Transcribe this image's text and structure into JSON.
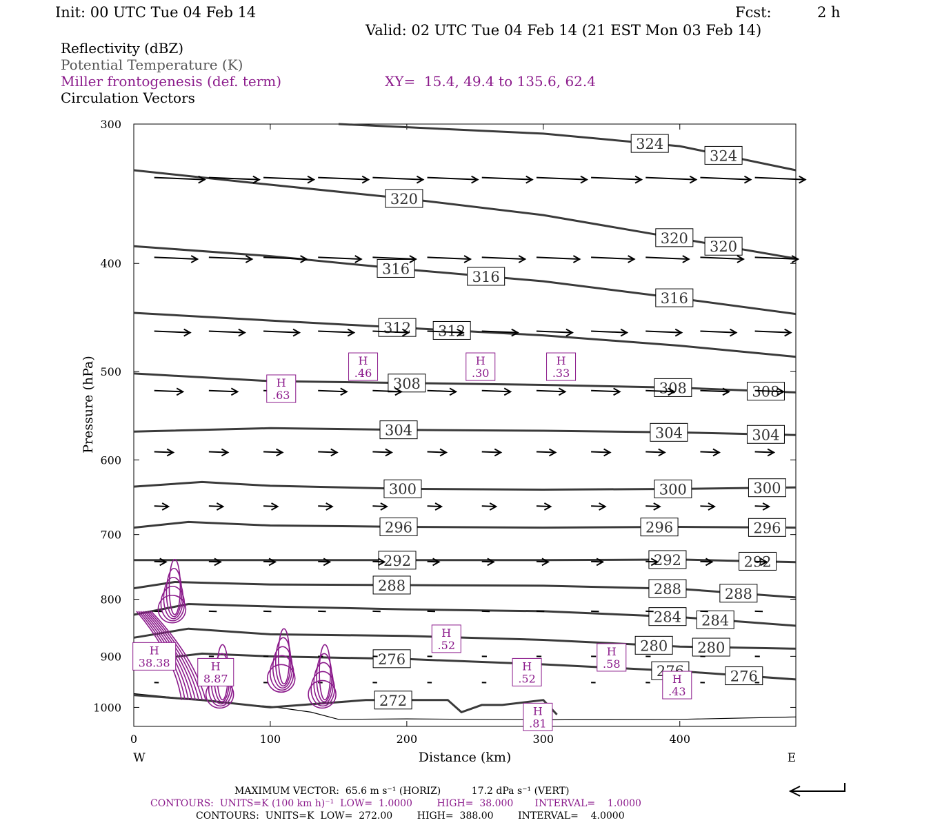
{
  "header": {
    "init": "Init: 00 UTC Tue 04 Feb 14",
    "fcst_label": "Fcst:",
    "fcst_value": "2 h",
    "valid": "Valid: 02 UTC Tue 04 Feb 14 (21 EST Mon 03 Feb 14)"
  },
  "legend": {
    "reflectivity": "Reflectivity (dBZ)",
    "theta": "Potential Temperature (K)",
    "frontogenesis": "Miller frontogenesis (def. term)",
    "xy": "XY=  15.4, 49.4 to 135.6, 62.4",
    "vectors": "Circulation Vectors"
  },
  "footer": {
    "max_vector": "MAXIMUM VECTOR:  65.6 m s⁻¹ (HORIZ)          17.2 dPa s⁻¹ (VERT)",
    "contours_purple": "CONTOURS:  UNITS=K (100 km h)⁻¹  LOW=  1.0000        HIGH=  38.000       INTERVAL=    1.0000",
    "contours_black": "CONTOURS:  UNITS=K  LOW=  272.00        HIGH=  388.00        INTERVAL=    4.0000"
  },
  "colors": {
    "theta": "#3a3a3a",
    "frontogenesis": "#8b1a8b",
    "vectors": "#000000",
    "terrain": "#000000"
  },
  "chart_data": {
    "type": "contour cross-section",
    "xlabel": "Distance (km)",
    "ylabel": "Pressure (hPa)",
    "xlim": [
      0,
      485
    ],
    "ylim": [
      1040,
      300
    ],
    "y_scale": "log",
    "x_ticks": [
      0,
      100,
      200,
      300,
      400
    ],
    "y_ticks": [
      300,
      400,
      500,
      600,
      700,
      800,
      900,
      1000
    ],
    "x_end_labels": [
      "W",
      "E"
    ],
    "theta_contours": [
      {
        "label": "324",
        "points": [
          [
            150,
            300
          ],
          [
            300,
            306
          ],
          [
            400,
            314
          ],
          [
            485,
            330
          ]
        ],
        "label_x": [
          378,
          432
        ]
      },
      {
        "label": "320",
        "points": [
          [
            0,
            330
          ],
          [
            100,
            340
          ],
          [
            200,
            350
          ],
          [
            300,
            362
          ],
          [
            400,
            380
          ],
          [
            485,
            396
          ]
        ],
        "label_x": [
          198,
          396,
          432
        ]
      },
      {
        "label": "316",
        "points": [
          [
            0,
            386
          ],
          [
            100,
            394
          ],
          [
            200,
            405
          ],
          [
            300,
            415
          ],
          [
            400,
            430
          ],
          [
            485,
            444
          ]
        ],
        "label_x": [
          192,
          258,
          396
        ]
      },
      {
        "label": "312",
        "points": [
          [
            0,
            443
          ],
          [
            100,
            450
          ],
          [
            200,
            457
          ],
          [
            300,
            464
          ],
          [
            400,
            474
          ],
          [
            485,
            485
          ]
        ],
        "label_x": [
          193,
          233
        ]
      },
      {
        "label": "308",
        "points": [
          [
            0,
            502
          ],
          [
            100,
            510
          ],
          [
            200,
            512
          ],
          [
            300,
            514
          ],
          [
            400,
            517
          ],
          [
            485,
            522
          ]
        ],
        "label_x": [
          200,
          395,
          463
        ]
      },
      {
        "label": "304",
        "points": [
          [
            0,
            566
          ],
          [
            100,
            562
          ],
          [
            200,
            564
          ],
          [
            300,
            565
          ],
          [
            400,
            567
          ],
          [
            485,
            570
          ]
        ],
        "label_x": [
          194,
          392,
          463
        ]
      },
      {
        "label": "300",
        "points": [
          [
            0,
            634
          ],
          [
            50,
            628
          ],
          [
            100,
            633
          ],
          [
            200,
            637
          ],
          [
            300,
            638
          ],
          [
            400,
            637
          ],
          [
            485,
            635
          ]
        ],
        "label_x": [
          197,
          395,
          464
        ]
      },
      {
        "label": "296",
        "points": [
          [
            0,
            690
          ],
          [
            40,
            682
          ],
          [
            100,
            687
          ],
          [
            200,
            689
          ],
          [
            300,
            690
          ],
          [
            400,
            689
          ],
          [
            485,
            690
          ]
        ],
        "label_x": [
          194,
          385,
          464
        ]
      },
      {
        "label": "292",
        "points": [
          [
            0,
            738
          ],
          [
            100,
            738
          ],
          [
            200,
            738
          ],
          [
            300,
            738
          ],
          [
            400,
            737
          ],
          [
            485,
            741
          ]
        ],
        "label_x": [
          193,
          391,
          457
        ]
      },
      {
        "label": "288",
        "points": [
          [
            0,
            782
          ],
          [
            30,
            772
          ],
          [
            100,
            776
          ],
          [
            200,
            777
          ],
          [
            300,
            778
          ],
          [
            400,
            783
          ],
          [
            485,
            797
          ]
        ],
        "label_x": [
          189,
          391,
          443
        ]
      },
      {
        "label": "284",
        "points": [
          [
            0,
            826
          ],
          [
            40,
            808
          ],
          [
            100,
            812
          ],
          [
            200,
            817
          ],
          [
            300,
            820
          ],
          [
            400,
            830
          ],
          [
            485,
            845
          ]
        ],
        "label_x": [
          391,
          426
        ]
      },
      {
        "label": "280",
        "points": [
          [
            0,
            866
          ],
          [
            40,
            850
          ],
          [
            100,
            860
          ],
          [
            200,
            863
          ],
          [
            300,
            870
          ],
          [
            400,
            882
          ],
          [
            485,
            886
          ]
        ],
        "label_x": [
          381,
          423
        ]
      },
      {
        "label": "276",
        "points": [
          [
            0,
            910
          ],
          [
            50,
            895
          ],
          [
            100,
            900
          ],
          [
            200,
            905
          ],
          [
            300,
            915
          ],
          [
            400,
            928
          ],
          [
            485,
            944
          ]
        ],
        "label_x": [
          189,
          393,
          447
        ]
      },
      {
        "label": "272",
        "points": [
          [
            0,
            975
          ],
          [
            50,
            985
          ],
          [
            100,
            1000
          ],
          [
            170,
            985
          ],
          [
            230,
            985
          ],
          [
            240,
            1010
          ],
          [
            255,
            995
          ],
          [
            270,
            995
          ],
          [
            300,
            985
          ],
          [
            310,
            1015
          ]
        ],
        "label_x": [
          190
        ]
      }
    ],
    "frontogenesis_maxima": [
      {
        "label": "H",
        "value": ".63",
        "x": 108,
        "p": 518
      },
      {
        "label": "H",
        "value": ".46",
        "x": 168,
        "p": 495
      },
      {
        "label": "H",
        "value": ".30",
        "x": 254,
        "p": 495
      },
      {
        "label": "H",
        "value": ".33",
        "x": 313,
        "p": 495
      },
      {
        "label": "H",
        "value": ".52",
        "x": 229,
        "p": 868
      },
      {
        "label": "H",
        "value": ".52",
        "x": 288,
        "p": 930
      },
      {
        "label": "H",
        "value": ".58",
        "x": 350,
        "p": 902
      },
      {
        "label": "H",
        "value": ".43",
        "x": 398,
        "p": 955
      },
      {
        "label": "H",
        "value": ".81",
        "x": 296,
        "p": 1020
      },
      {
        "label": "H",
        "value": "38.38",
        "x": 15,
        "p": 900
      },
      {
        "label": "H",
        "value": "8.87",
        "x": 60,
        "p": 930
      }
    ],
    "terrain_surface_p": [
      [
        0,
        972
      ],
      [
        30,
        980
      ],
      [
        70,
        992
      ],
      [
        100,
        998
      ],
      [
        130,
        1010
      ],
      [
        150,
        1025
      ],
      [
        200,
        1024
      ],
      [
        300,
        1026
      ],
      [
        400,
        1025
      ],
      [
        485,
        1020
      ]
    ]
  }
}
